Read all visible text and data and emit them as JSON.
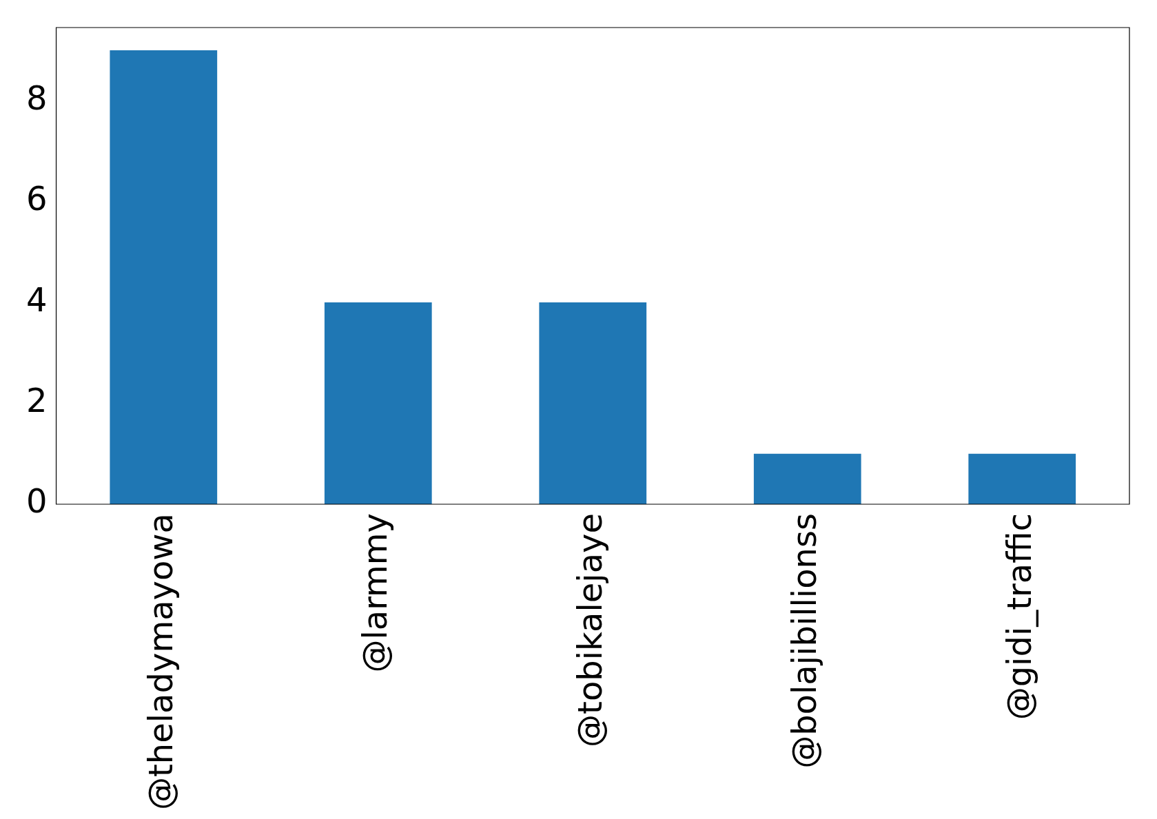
{
  "chart_data": {
    "type": "bar",
    "categories": [
      "@theladymayowa",
      "@larmmy",
      "@tobikalejaye",
      "@bolajibillionss",
      "@gidi_traffic"
    ],
    "values": [
      9,
      4,
      4,
      1,
      1
    ],
    "color": "#1f77b4",
    "ylim": [
      0,
      9.45
    ],
    "yticks": [
      0,
      2,
      4,
      6,
      8
    ],
    "grid": false,
    "legend": false
  }
}
